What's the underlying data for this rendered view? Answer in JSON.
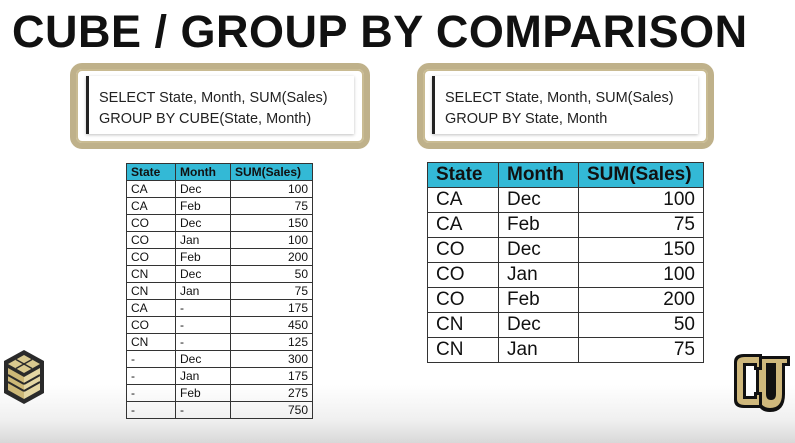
{
  "title": "CUBE / GROUP BY COMPARISON",
  "left_query": {
    "line1": "SELECT State, Month, SUM(Sales)",
    "line2": "GROUP BY CUBE(State, Month)"
  },
  "right_query": {
    "line1": "SELECT State, Month, SUM(Sales)",
    "line2": "GROUP BY State, Month"
  },
  "columns": [
    "State",
    "Month",
    "SUM(Sales)"
  ],
  "left_rows": [
    [
      "CA",
      "Dec",
      "100"
    ],
    [
      "CA",
      "Feb",
      "75"
    ],
    [
      "CO",
      "Dec",
      "150"
    ],
    [
      "CO",
      "Jan",
      "100"
    ],
    [
      "CO",
      "Feb",
      "200"
    ],
    [
      "CN",
      "Dec",
      "50"
    ],
    [
      "CN",
      "Jan",
      "75"
    ],
    [
      "CA",
      "-",
      "175"
    ],
    [
      "CO",
      "-",
      "450"
    ],
    [
      "CN",
      "-",
      "125"
    ],
    [
      "-",
      "Dec",
      "300"
    ],
    [
      "-",
      "Jan",
      "175"
    ],
    [
      "-",
      "Feb",
      "275"
    ],
    [
      "-",
      "-",
      "750"
    ]
  ],
  "right_rows": [
    [
      "CA",
      "Dec",
      "100"
    ],
    [
      "CA",
      "Feb",
      "75"
    ],
    [
      "CO",
      "Dec",
      "150"
    ],
    [
      "CO",
      "Jan",
      "100"
    ],
    [
      "CO",
      "Feb",
      "200"
    ],
    [
      "CN",
      "Dec",
      "50"
    ],
    [
      "CN",
      "Jan",
      "75"
    ]
  ],
  "colors": {
    "header_fill": "#33b9d6",
    "box_border": "#bfb18a",
    "cu_gold": "#cfb87c"
  },
  "icons": {
    "left_logo": "isometric-cube-logo-icon",
    "right_logo": "cu-university-logo-icon"
  }
}
